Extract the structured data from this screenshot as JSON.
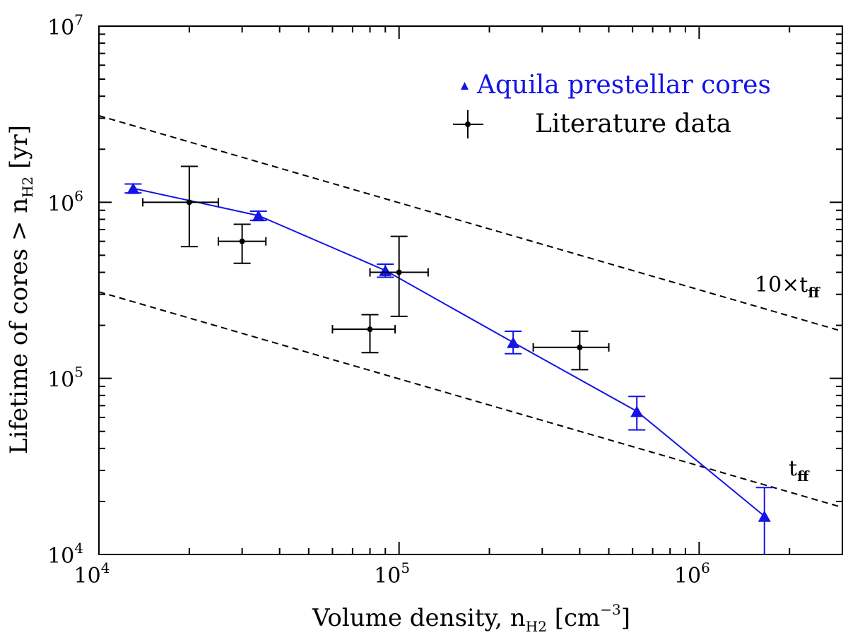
{
  "chart_data": {
    "type": "scatter",
    "xscale": "log",
    "yscale": "log",
    "xlim": [
      10000,
      3000000
    ],
    "ylim": [
      10000,
      10000000
    ],
    "xlabel": {
      "main": "Volume density, n",
      "sub": "H2",
      "unit_prefix": " [cm",
      "unit_sup": "−3",
      "unit_suffix": "]"
    },
    "ylabel": {
      "main": "Lifetime of cores > n",
      "sub": "H2",
      "unit": "  [yr]"
    },
    "x_ticks": [
      {
        "value": 10000,
        "base": "10",
        "exp": "4"
      },
      {
        "value": 100000,
        "base": "10",
        "exp": "5"
      },
      {
        "value": 1000000,
        "base": "10",
        "exp": "6"
      }
    ],
    "y_ticks": [
      {
        "value": 10000,
        "base": "10",
        "exp": "4"
      },
      {
        "value": 100000,
        "base": "10",
        "exp": "5"
      },
      {
        "value": 1000000,
        "base": "10",
        "exp": "6"
      },
      {
        "value": 10000000,
        "base": "10",
        "exp": "7"
      }
    ],
    "series": [
      {
        "name": "Aquila prestellar cores",
        "color": "#1414e6",
        "marker": "triangle",
        "connected": true,
        "points": [
          {
            "x": 13000,
            "y": 1200000,
            "y_lo": 1130000,
            "y_hi": 1270000
          },
          {
            "x": 34000,
            "y": 840000,
            "y_lo": 790000,
            "y_hi": 890000
          },
          {
            "x": 90000,
            "y": 410000,
            "y_lo": 375000,
            "y_hi": 445000
          },
          {
            "x": 240000,
            "y": 160000,
            "y_lo": 138000,
            "y_hi": 185000
          },
          {
            "x": 620000,
            "y": 65000,
            "y_lo": 51000,
            "y_hi": 79000
          },
          {
            "x": 1650000,
            "y": 16500,
            "y_lo": 10000,
            "y_hi": 24000
          }
        ]
      },
      {
        "name": "Literature data",
        "color": "#000000",
        "marker": "dot",
        "connected": false,
        "points": [
          {
            "x": 20000,
            "y": 1000000,
            "x_lo": 14000,
            "x_hi": 25000,
            "y_lo": 560000,
            "y_hi": 1600000
          },
          {
            "x": 30000,
            "y": 600000,
            "x_lo": 25000,
            "x_hi": 36000,
            "y_lo": 450000,
            "y_hi": 750000
          },
          {
            "x": 80000,
            "y": 190000,
            "x_lo": 60000,
            "x_hi": 97000,
            "y_lo": 140000,
            "y_hi": 230000
          },
          {
            "x": 100000,
            "y": 400000,
            "x_lo": 80000,
            "x_hi": 125000,
            "y_lo": 225000,
            "y_hi": 640000
          },
          {
            "x": 400000,
            "y": 150000,
            "x_lo": 280000,
            "x_hi": 500000,
            "y_lo": 112000,
            "y_hi": 185000
          }
        ]
      }
    ],
    "reference_lines": [
      {
        "label_main": "10×t",
        "label_sub": "ff",
        "style": "dashed",
        "points": [
          [
            10000,
            3100000
          ],
          [
            3000000,
            185000
          ]
        ]
      },
      {
        "label_main": "t",
        "label_sub": "ff",
        "style": "dashed",
        "points": [
          [
            10000,
            310000
          ],
          [
            3000000,
            18500
          ]
        ]
      }
    ],
    "legend": {
      "position": "top-right",
      "entries": [
        {
          "text": "Aquila prestellar cores",
          "color": "#1414e6",
          "marker": "triangle"
        },
        {
          "text": "Literature data",
          "color": "#000000",
          "marker": "errorbar-dot"
        }
      ]
    }
  }
}
